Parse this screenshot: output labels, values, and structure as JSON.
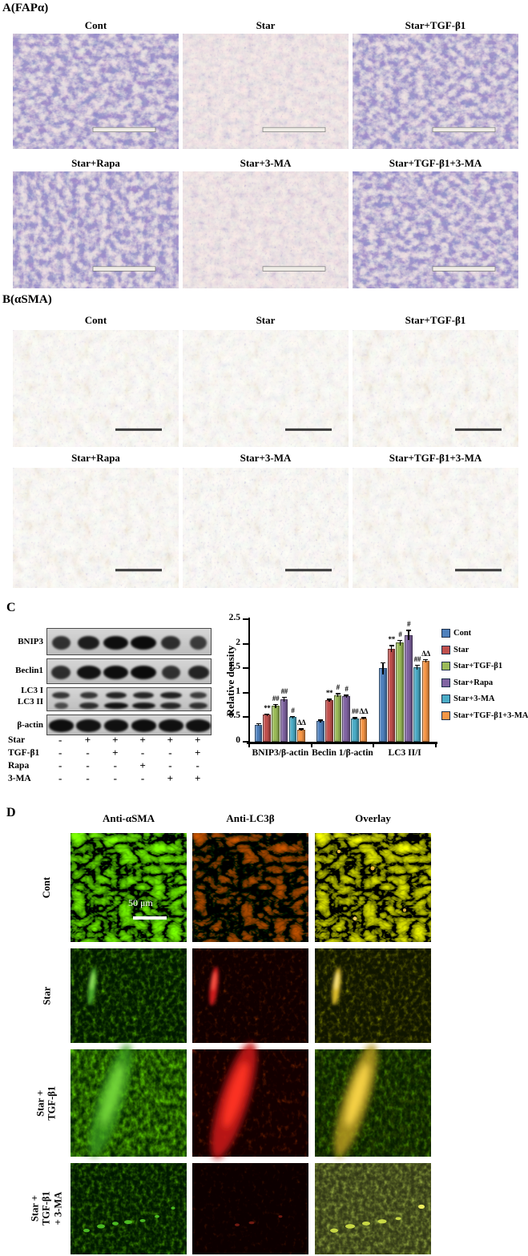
{
  "figure": {
    "panel_a": {
      "label": "A(FAPα)",
      "row1": [
        "Cont",
        "Star",
        "Star+TGF-β1"
      ],
      "row2": [
        "Star+Rapa",
        "Star+3-MA",
        "Star+TGF-β1+3-MA"
      ]
    },
    "panel_b": {
      "label": "B(αSMA)",
      "row1": [
        "Cont",
        "Star",
        "Star+TGF-β1"
      ],
      "row2": [
        "Star+Rapa",
        "Star+3-MA",
        "Star+TGF-β1+3-MA"
      ]
    },
    "panel_c": {
      "label": "C",
      "blots": [
        {
          "label": "BNIP3",
          "bands": [
            [
              0.55,
              0.78,
              0.95,
              1.0,
              0.6,
              0.45
            ]
          ]
        },
        {
          "label": "Beclin1",
          "bands": [
            [
              0.6,
              0.9,
              0.95,
              1.0,
              0.55,
              0.72
            ]
          ]
        },
        {
          "label": "LC3 I",
          "label2": "LC3 II",
          "bands": [
            [
              0.5,
              0.5,
              0.72,
              0.7,
              0.75,
              0.45
            ],
            [
              0.25,
              0.6,
              0.9,
              0.85,
              0.7,
              0.55
            ]
          ]
        },
        {
          "label": "β-actin",
          "bands": [
            [
              0.95,
              0.92,
              0.93,
              0.95,
              0.93,
              0.94
            ]
          ]
        }
      ],
      "treatments": [
        {
          "label": "Star",
          "values": [
            "-",
            "+",
            "+",
            "+",
            "+",
            "+"
          ]
        },
        {
          "label": "TGF-β1",
          "values": [
            "-",
            "-",
            "+",
            "-",
            "-",
            "+"
          ]
        },
        {
          "label": "Rapa",
          "values": [
            "-",
            "-",
            "-",
            "+",
            "-",
            "-"
          ]
        },
        {
          "label": "3-MA",
          "values": [
            "-",
            "-",
            "-",
            "-",
            "+",
            "+"
          ]
        }
      ]
    },
    "panel_d": {
      "label": "D",
      "columns": [
        "Anti-αSMA",
        "Anti-LC3β",
        "Overlay"
      ],
      "rows": [
        "Cont",
        "Star",
        "Star + TGF-β1",
        "Star + TGF-β1\n+ 3-MA"
      ],
      "scale_bar": "50 μm"
    }
  },
  "chart_data": {
    "type": "bar",
    "title": "",
    "xlabel": "",
    "ylabel": "Relative density",
    "ylim": [
      0,
      2.5
    ],
    "yticks": [
      0,
      0.5,
      1,
      1.5,
      2,
      2.5
    ],
    "grid": false,
    "legend_position": "right",
    "categories": [
      "BNIP3/β-actin",
      "Beclin 1/β-actin",
      "LC3 II/I"
    ],
    "series": [
      {
        "name": "Cont",
        "color": "#4F81BD",
        "values": [
          0.35,
          0.42,
          1.5
        ],
        "errors": [
          0.03,
          0.03,
          0.12
        ],
        "annotations": [
          "",
          "",
          ""
        ]
      },
      {
        "name": "Star",
        "color": "#C0504D",
        "values": [
          0.55,
          0.85,
          1.9
        ],
        "errors": [
          0.03,
          0.03,
          0.07
        ],
        "annotations": [
          "**",
          "**",
          "**"
        ]
      },
      {
        "name": "Star+TGF-β1",
        "color": "#9BBB59",
        "values": [
          0.73,
          0.95,
          2.02
        ],
        "errors": [
          0.04,
          0.04,
          0.06
        ],
        "annotations": [
          "##",
          "#",
          "#"
        ]
      },
      {
        "name": "Star+Rapa",
        "color": "#8064A2",
        "values": [
          0.87,
          0.93,
          2.18
        ],
        "errors": [
          0.05,
          0.03,
          0.1
        ],
        "annotations": [
          "##",
          "#",
          "#"
        ]
      },
      {
        "name": "Star+3-MA",
        "color": "#4BACC6",
        "values": [
          0.5,
          0.48,
          1.52
        ],
        "errors": [
          0.03,
          0.02,
          0.05
        ],
        "annotations": [
          "#",
          "##",
          "##"
        ]
      },
      {
        "name": "Star+TGF-β1+3-MA",
        "color": "#F79646",
        "values": [
          0.25,
          0.48,
          1.65
        ],
        "errors": [
          0.02,
          0.02,
          0.04
        ],
        "annotations": [
          "ΔΔ",
          "ΔΔ",
          "ΔΔ"
        ]
      }
    ]
  }
}
